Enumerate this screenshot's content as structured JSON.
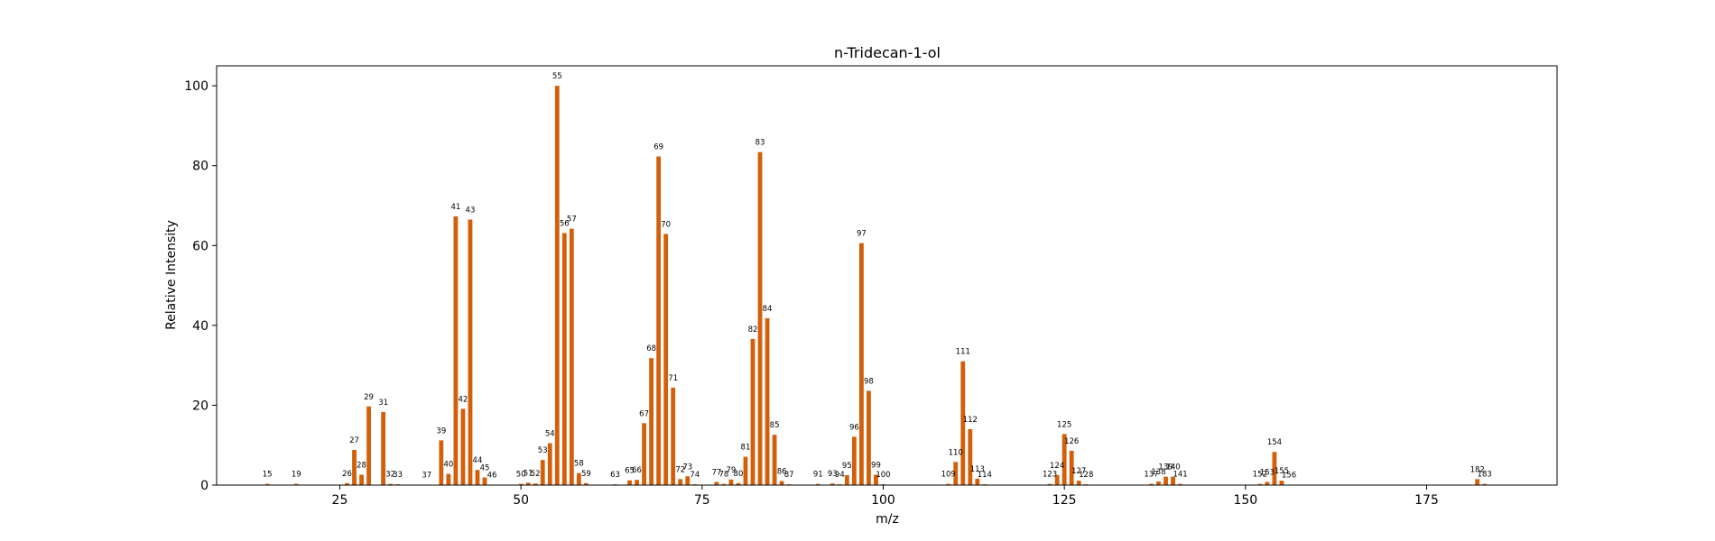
{
  "chart_data": {
    "type": "bar",
    "title": "n-Tridecan-1-ol",
    "xlabel": "m/z",
    "ylabel": "Relative Intensity",
    "xlim": [
      8,
      193
    ],
    "ylim": [
      0,
      105
    ],
    "xticks": [
      25,
      50,
      75,
      100,
      125,
      150,
      175
    ],
    "yticks": [
      0,
      20,
      40,
      60,
      80,
      100
    ],
    "grid": false,
    "bar_color": "#d35f0a",
    "peaks": [
      {
        "mz": 15,
        "intensity": 0.3
      },
      {
        "mz": 19,
        "intensity": 0.3
      },
      {
        "mz": 26,
        "intensity": 0.5
      },
      {
        "mz": 27,
        "intensity": 8.8
      },
      {
        "mz": 28,
        "intensity": 2.6
      },
      {
        "mz": 29,
        "intensity": 19.7
      },
      {
        "mz": 31,
        "intensity": 18.3
      },
      {
        "mz": 32,
        "intensity": 0.3
      },
      {
        "mz": 33,
        "intensity": 0.2
      },
      {
        "mz": 37,
        "intensity": 0.1
      },
      {
        "mz": 39,
        "intensity": 11.2
      },
      {
        "mz": 40,
        "intensity": 2.8
      },
      {
        "mz": 41,
        "intensity": 67.3
      },
      {
        "mz": 42,
        "intensity": 19.1
      },
      {
        "mz": 43,
        "intensity": 66.5
      },
      {
        "mz": 44,
        "intensity": 3.8
      },
      {
        "mz": 45,
        "intensity": 1.9
      },
      {
        "mz": 46,
        "intensity": 0.1
      },
      {
        "mz": 50,
        "intensity": 0.3
      },
      {
        "mz": 51,
        "intensity": 0.6
      },
      {
        "mz": 52,
        "intensity": 0.4
      },
      {
        "mz": 53,
        "intensity": 6.3
      },
      {
        "mz": 54,
        "intensity": 10.5
      },
      {
        "mz": 55,
        "intensity": 100
      },
      {
        "mz": 56,
        "intensity": 63.1
      },
      {
        "mz": 57,
        "intensity": 64.2
      },
      {
        "mz": 58,
        "intensity": 3.0
      },
      {
        "mz": 59,
        "intensity": 0.5
      },
      {
        "mz": 63,
        "intensity": 0.2
      },
      {
        "mz": 65,
        "intensity": 1.2
      },
      {
        "mz": 66,
        "intensity": 1.3
      },
      {
        "mz": 67,
        "intensity": 15.5
      },
      {
        "mz": 68,
        "intensity": 31.8
      },
      {
        "mz": 69,
        "intensity": 82.3
      },
      {
        "mz": 70,
        "intensity": 62.9
      },
      {
        "mz": 71,
        "intensity": 24.4
      },
      {
        "mz": 72,
        "intensity": 1.5
      },
      {
        "mz": 73,
        "intensity": 2.2
      },
      {
        "mz": 74,
        "intensity": 0.2
      },
      {
        "mz": 77,
        "intensity": 0.8
      },
      {
        "mz": 78,
        "intensity": 0.3
      },
      {
        "mz": 79,
        "intensity": 1.4
      },
      {
        "mz": 80,
        "intensity": 0.5
      },
      {
        "mz": 81,
        "intensity": 7.1
      },
      {
        "mz": 82,
        "intensity": 36.6
      },
      {
        "mz": 83,
        "intensity": 83.4
      },
      {
        "mz": 84,
        "intensity": 41.8
      },
      {
        "mz": 85,
        "intensity": 12.6
      },
      {
        "mz": 86,
        "intensity": 1.0
      },
      {
        "mz": 87,
        "intensity": 0.2
      },
      {
        "mz": 91,
        "intensity": 0.3
      },
      {
        "mz": 93,
        "intensity": 0.4
      },
      {
        "mz": 94,
        "intensity": 0.2
      },
      {
        "mz": 95,
        "intensity": 2.5
      },
      {
        "mz": 96,
        "intensity": 12.1
      },
      {
        "mz": 97,
        "intensity": 60.6
      },
      {
        "mz": 98,
        "intensity": 23.6
      },
      {
        "mz": 99,
        "intensity": 2.6
      },
      {
        "mz": 100,
        "intensity": 0.2
      },
      {
        "mz": 109,
        "intensity": 0.3
      },
      {
        "mz": 110,
        "intensity": 5.8
      },
      {
        "mz": 111,
        "intensity": 31.0
      },
      {
        "mz": 112,
        "intensity": 14.0
      },
      {
        "mz": 113,
        "intensity": 1.6
      },
      {
        "mz": 114,
        "intensity": 0.2
      },
      {
        "mz": 123,
        "intensity": 0.3
      },
      {
        "mz": 124,
        "intensity": 2.5
      },
      {
        "mz": 125,
        "intensity": 12.8
      },
      {
        "mz": 126,
        "intensity": 8.6
      },
      {
        "mz": 127,
        "intensity": 1.1
      },
      {
        "mz": 128,
        "intensity": 0.2
      },
      {
        "mz": 137,
        "intensity": 0.3
      },
      {
        "mz": 138,
        "intensity": 0.9
      },
      {
        "mz": 139,
        "intensity": 2.1
      },
      {
        "mz": 140,
        "intensity": 2.1
      },
      {
        "mz": 141,
        "intensity": 0.3
      },
      {
        "mz": 152,
        "intensity": 0.3
      },
      {
        "mz": 153,
        "intensity": 0.8
      },
      {
        "mz": 154,
        "intensity": 8.3
      },
      {
        "mz": 155,
        "intensity": 1.1
      },
      {
        "mz": 156,
        "intensity": 0.1
      },
      {
        "mz": 182,
        "intensity": 1.5
      },
      {
        "mz": 183,
        "intensity": 0.3
      }
    ]
  }
}
